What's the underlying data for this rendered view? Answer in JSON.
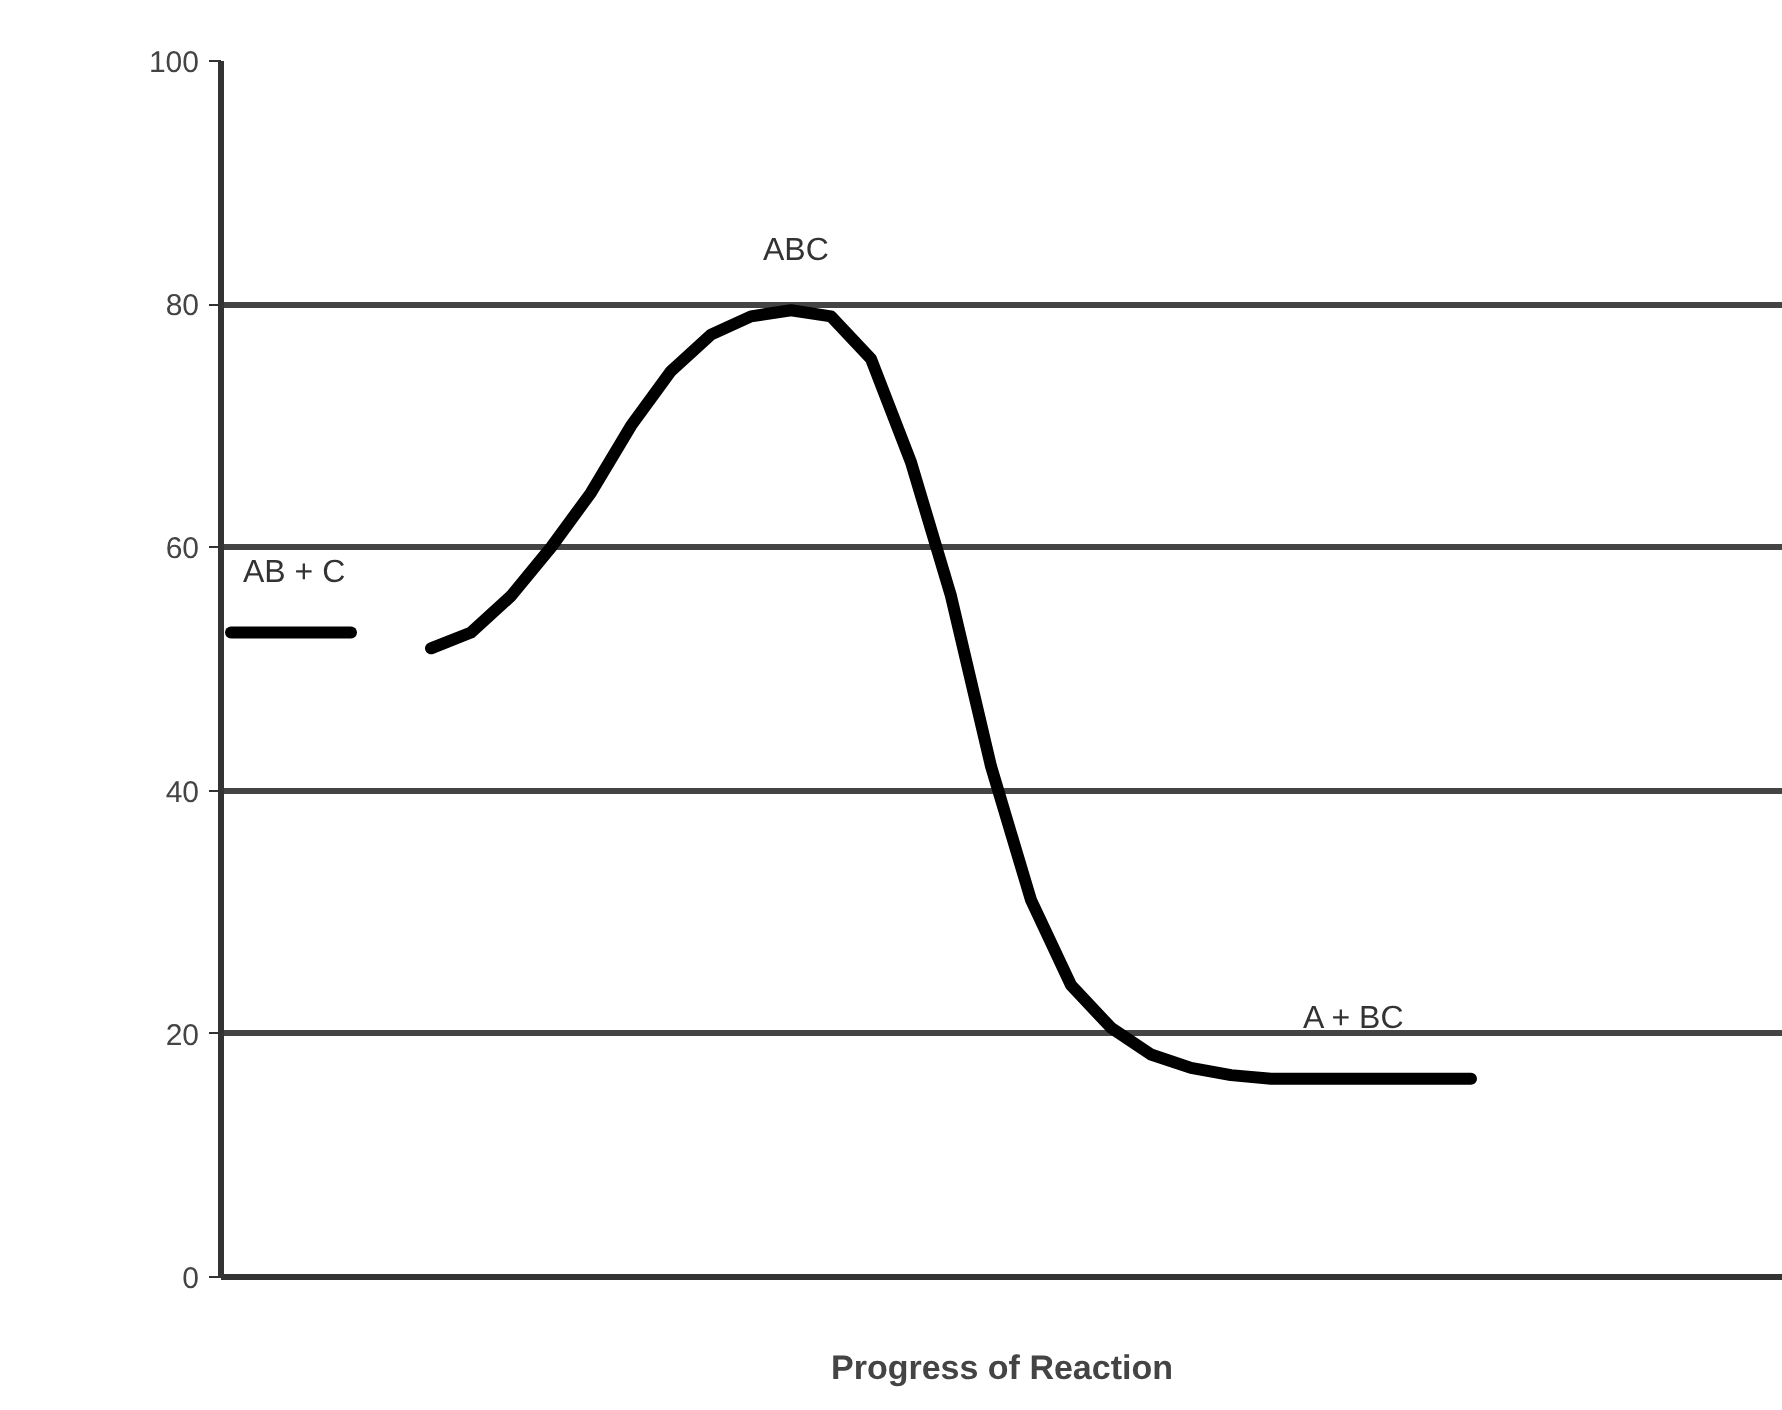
{
  "chart_data": {
    "type": "line",
    "xlabel": "Progress of Reaction",
    "categories": [
      null,
      null,
      null,
      null,
      null,
      null,
      null,
      null,
      null,
      null,
      null,
      null,
      null,
      null,
      null,
      null,
      null,
      null,
      null,
      null,
      null,
      null,
      null,
      null,
      null,
      null,
      null,
      null,
      null,
      null,
      null,
      null,
      null,
      null,
      null,
      null,
      null,
      null,
      null
    ],
    "series": [
      {
        "color": "#000000",
        "values": [
          53,
          53,
          53,
          53,
          null,
          null,
          null,
          null,
          null,
          null,
          null,
          null,
          null,
          null,
          null,
          null,
          null,
          null,
          null,
          null,
          null,
          null,
          null,
          null,
          null,
          null,
          null,
          null,
          null,
          null,
          null,
          null,
          null,
          null,
          null,
          null,
          null,
          null,
          null
        ]
      },
      {
        "color": "#000000",
        "values": [
          null,
          null,
          null,
          null,
          null,
          51.7,
          53,
          56,
          60,
          64.5,
          70,
          74.5,
          77.5,
          79,
          79.5,
          79,
          75.5,
          67,
          56,
          42,
          31,
          24,
          20.5,
          18.3,
          17.2,
          16.6,
          16.3,
          16.3,
          16.3,
          16.3,
          16.3,
          16.3,
          null,
          null,
          null,
          null,
          null,
          null,
          null
        ]
      }
    ],
    "ylim": [
      0,
      100
    ],
    "yticks": [
      0,
      20,
      40,
      60,
      80,
      100
    ],
    "grid": "y",
    "tick_labels": "y",
    "marker": "none",
    "line_style": "solid",
    "annotations": [
      "ABC",
      "AB + C",
      "A + BC"
    ]
  }
}
